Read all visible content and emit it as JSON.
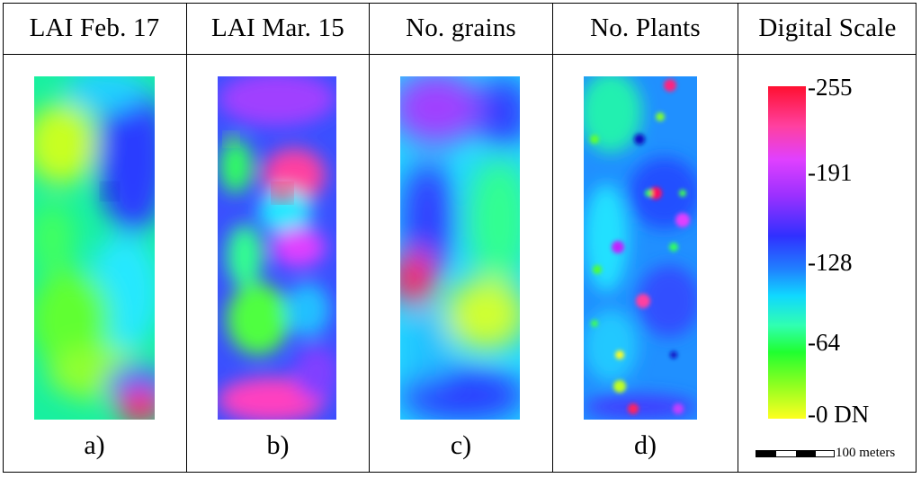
{
  "headers": [
    "LAI Feb. 17",
    "LAI Mar. 15",
    "No. grains",
    "No. Plants",
    "Digital Scale"
  ],
  "captions": [
    "a)",
    "b)",
    "c)",
    "d)"
  ],
  "scale_ticks": [
    "-255",
    "-191",
    "-128",
    "-64",
    "-0 DN"
  ],
  "scale_bar_label": "100 meters",
  "colors": {
    "scale_high": "#ff1030",
    "scale_mid_high": "#e040ff",
    "scale_mid": "#3030ff",
    "scale_mid_low": "#10d8ff",
    "scale_low_green": "#20ff30",
    "scale_low": "#ffff20"
  }
}
